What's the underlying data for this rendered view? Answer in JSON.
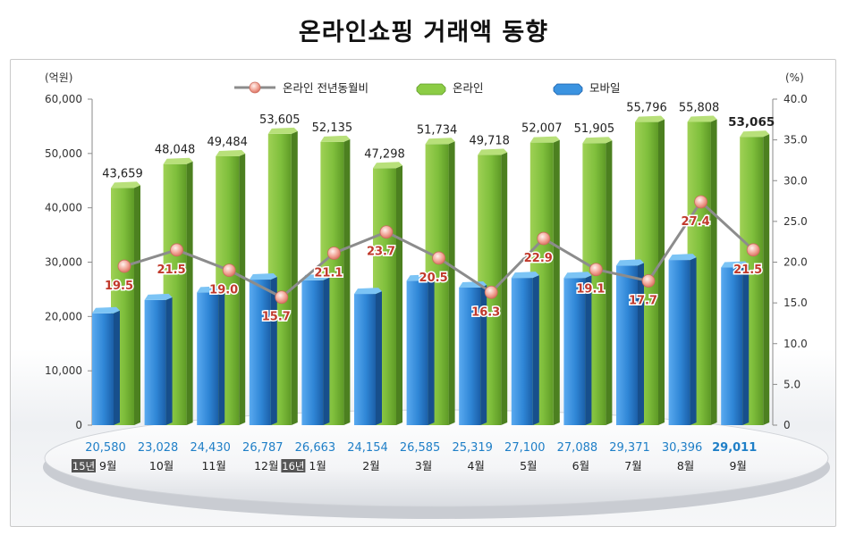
{
  "title": "온라인쇼핑 거래액 동향",
  "chart_data": {
    "type": "bar",
    "y_left_unit": "(억원)",
    "y_right_unit": "(%)",
    "ylim_left": [
      0,
      60000
    ],
    "ylim_right": [
      0,
      40
    ],
    "y_left_ticks": [
      "0",
      "10,000",
      "20,000",
      "30,000",
      "40,000",
      "50,000",
      "60,000"
    ],
    "y_right_ticks": [
      "0",
      "5.0",
      "10.0",
      "15.0",
      "20.0",
      "25.0",
      "30.0",
      "35.0",
      "40.0"
    ],
    "legend_position": "top",
    "grid": false,
    "categories": [
      {
        "year_badge": "15년",
        "month": "9월"
      },
      {
        "year_badge": "",
        "month": "10월"
      },
      {
        "year_badge": "",
        "month": "11월"
      },
      {
        "year_badge": "",
        "month": "12월"
      },
      {
        "year_badge": "16년",
        "month": "1월"
      },
      {
        "year_badge": "",
        "month": "2월"
      },
      {
        "year_badge": "",
        "month": "3월"
      },
      {
        "year_badge": "",
        "month": "4월"
      },
      {
        "year_badge": "",
        "month": "5월"
      },
      {
        "year_badge": "",
        "month": "6월"
      },
      {
        "year_badge": "",
        "month": "7월"
      },
      {
        "year_badge": "",
        "month": "8월"
      },
      {
        "year_badge": "",
        "month": "9월"
      }
    ],
    "series": [
      {
        "name": "온라인",
        "kind": "bar",
        "axis": "left",
        "color": "#7cbb3a",
        "values": [
          43659,
          48048,
          49484,
          53605,
          52135,
          47298,
          51734,
          49718,
          52007,
          51905,
          55796,
          55808,
          53065
        ],
        "labels": [
          "43,659",
          "48,048",
          "49,484",
          "53,605",
          "52,135",
          "47,298",
          "51,734",
          "49,718",
          "52,007",
          "51,905",
          "55,796",
          "55,808",
          "53,065"
        ]
      },
      {
        "name": "모바일",
        "kind": "bar",
        "axis": "left",
        "color": "#2f86d6",
        "values": [
          20580,
          23028,
          24430,
          26787,
          26663,
          24154,
          26585,
          25319,
          27100,
          27088,
          29371,
          30396,
          29011
        ],
        "labels": [
          "20,580",
          "23,028",
          "24,430",
          "26,787",
          "26,663",
          "24,154",
          "26,585",
          "25,319",
          "27,100",
          "27,088",
          "29,371",
          "30,396",
          "29,011"
        ]
      },
      {
        "name": "온라인 전년동월비",
        "kind": "line",
        "axis": "right",
        "color": "#8c8c8c",
        "values": [
          19.5,
          21.5,
          19.0,
          15.7,
          21.1,
          23.7,
          20.5,
          16.3,
          22.9,
          19.1,
          17.7,
          27.4,
          21.5
        ],
        "labels": [
          "19.5",
          "21.5",
          "19.0",
          "15.7",
          "21.1",
          "23.7",
          "20.5",
          "16.3",
          "22.9",
          "19.1",
          "17.7",
          "27.4",
          "21.5"
        ]
      }
    ]
  },
  "colors": {
    "online_bar": "#7cbb3a",
    "mobile_bar": "#2f86d6",
    "line": "#8c8c8c",
    "pct_label": "#c0392b",
    "mobile_label": "#1f7fc7",
    "badge_bg": "#555555"
  }
}
